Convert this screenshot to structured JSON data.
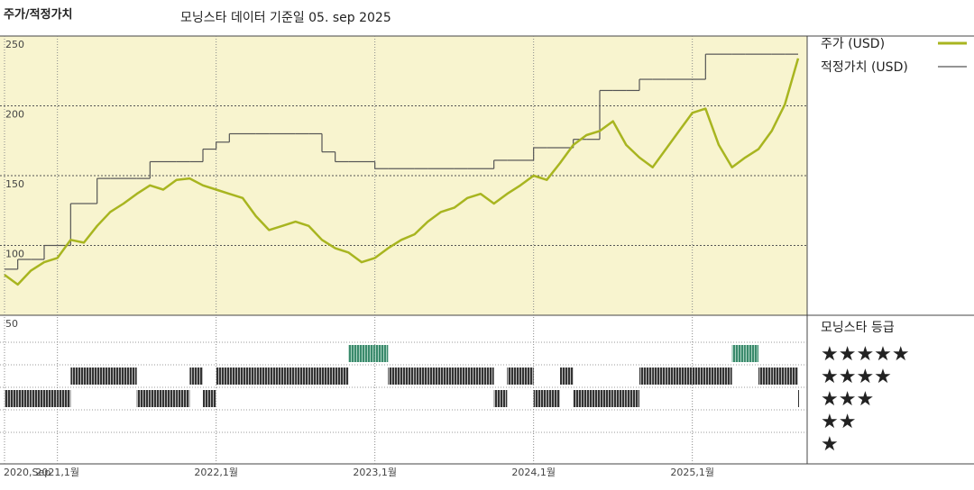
{
  "chart_data": {
    "type": "line",
    "title": "주가/적정가치",
    "subtitle": "모닝스타 데이터 기준일 05. sep 2025",
    "x": [
      "2020-09",
      "2020-10",
      "2020-11",
      "2020-12",
      "2021-01",
      "2021-02",
      "2021-03",
      "2021-04",
      "2021-05",
      "2021-06",
      "2021-07",
      "2021-08",
      "2021-09",
      "2021-10",
      "2021-11",
      "2021-12",
      "2022-01",
      "2022-02",
      "2022-03",
      "2022-04",
      "2022-05",
      "2022-06",
      "2022-07",
      "2022-08",
      "2022-09",
      "2022-10",
      "2022-11",
      "2022-12",
      "2023-01",
      "2023-02",
      "2023-03",
      "2023-04",
      "2023-05",
      "2023-06",
      "2023-07",
      "2023-08",
      "2023-09",
      "2023-10",
      "2023-11",
      "2023-12",
      "2024-01",
      "2024-02",
      "2024-03",
      "2024-04",
      "2024-05",
      "2024-06",
      "2024-07",
      "2024-08",
      "2024-09",
      "2024-10",
      "2024-11",
      "2024-12",
      "2025-01",
      "2025-02",
      "2025-03",
      "2025-04",
      "2025-05",
      "2025-06",
      "2025-07",
      "2025-08",
      "2025-09"
    ],
    "xlim": [
      "2020-09",
      "2025-09"
    ],
    "xticks": [
      {
        "value": "2020-09",
        "label": "2020,Sep"
      },
      {
        "value": "2021-01",
        "label": "2021,1월"
      },
      {
        "value": "2022-01",
        "label": "2022,1월"
      },
      {
        "value": "2023-01",
        "label": "2023,1월"
      },
      {
        "value": "2024-01",
        "label": "2024,1월"
      },
      {
        "value": "2025-01",
        "label": "2025,1월"
      }
    ],
    "ylim": [
      50,
      250
    ],
    "yticks": [
      50,
      100,
      150,
      200,
      250
    ],
    "grid": true,
    "series": [
      {
        "name": "주가 (USD)",
        "color": "#a8b520",
        "values": [
          79,
          72,
          82,
          88,
          91,
          104,
          102,
          114,
          124,
          130,
          137,
          143,
          140,
          147,
          148,
          143,
          140,
          137,
          134,
          121,
          111,
          114,
          117,
          114,
          104,
          98,
          95,
          88,
          91,
          98,
          104,
          108,
          117,
          124,
          127,
          134,
          137,
          130,
          137,
          143,
          150,
          147,
          159,
          172,
          179,
          182,
          189,
          172,
          163,
          156,
          169,
          182,
          195,
          198,
          172,
          156,
          163,
          169,
          182,
          201,
          234
        ]
      },
      {
        "name": "적정가치 (USD)",
        "color": "#555555",
        "values": [
          83,
          90,
          90,
          100,
          100,
          130,
          130,
          148,
          148,
          148,
          148,
          160,
          160,
          160,
          160,
          169,
          174,
          180,
          180,
          180,
          180,
          180,
          180,
          180,
          167,
          160,
          160,
          160,
          155,
          155,
          155,
          155,
          155,
          155,
          155,
          155,
          155,
          161,
          161,
          161,
          170,
          170,
          170,
          176,
          176,
          211,
          211,
          211,
          219,
          219,
          219,
          219,
          219,
          237,
          237,
          237,
          237,
          237,
          237,
          237,
          237
        ]
      }
    ],
    "rating": {
      "title": "모닝스타 등급",
      "levels": [
        "★★★★★",
        "★★★★",
        "★★★",
        "★★",
        "★"
      ],
      "values": [
        3,
        3,
        3,
        3,
        3,
        4,
        4,
        4,
        4,
        4,
        3,
        3,
        3,
        3,
        4,
        3,
        4,
        4,
        4,
        4,
        4,
        4,
        4,
        4,
        4,
        4,
        5,
        5,
        5,
        4,
        4,
        4,
        4,
        4,
        4,
        4,
        4,
        3,
        4,
        4,
        3,
        3,
        4,
        3,
        3,
        3,
        3,
        3,
        4,
        4,
        4,
        4,
        4,
        4,
        4,
        5,
        5,
        4,
        4,
        4,
        3
      ]
    }
  }
}
